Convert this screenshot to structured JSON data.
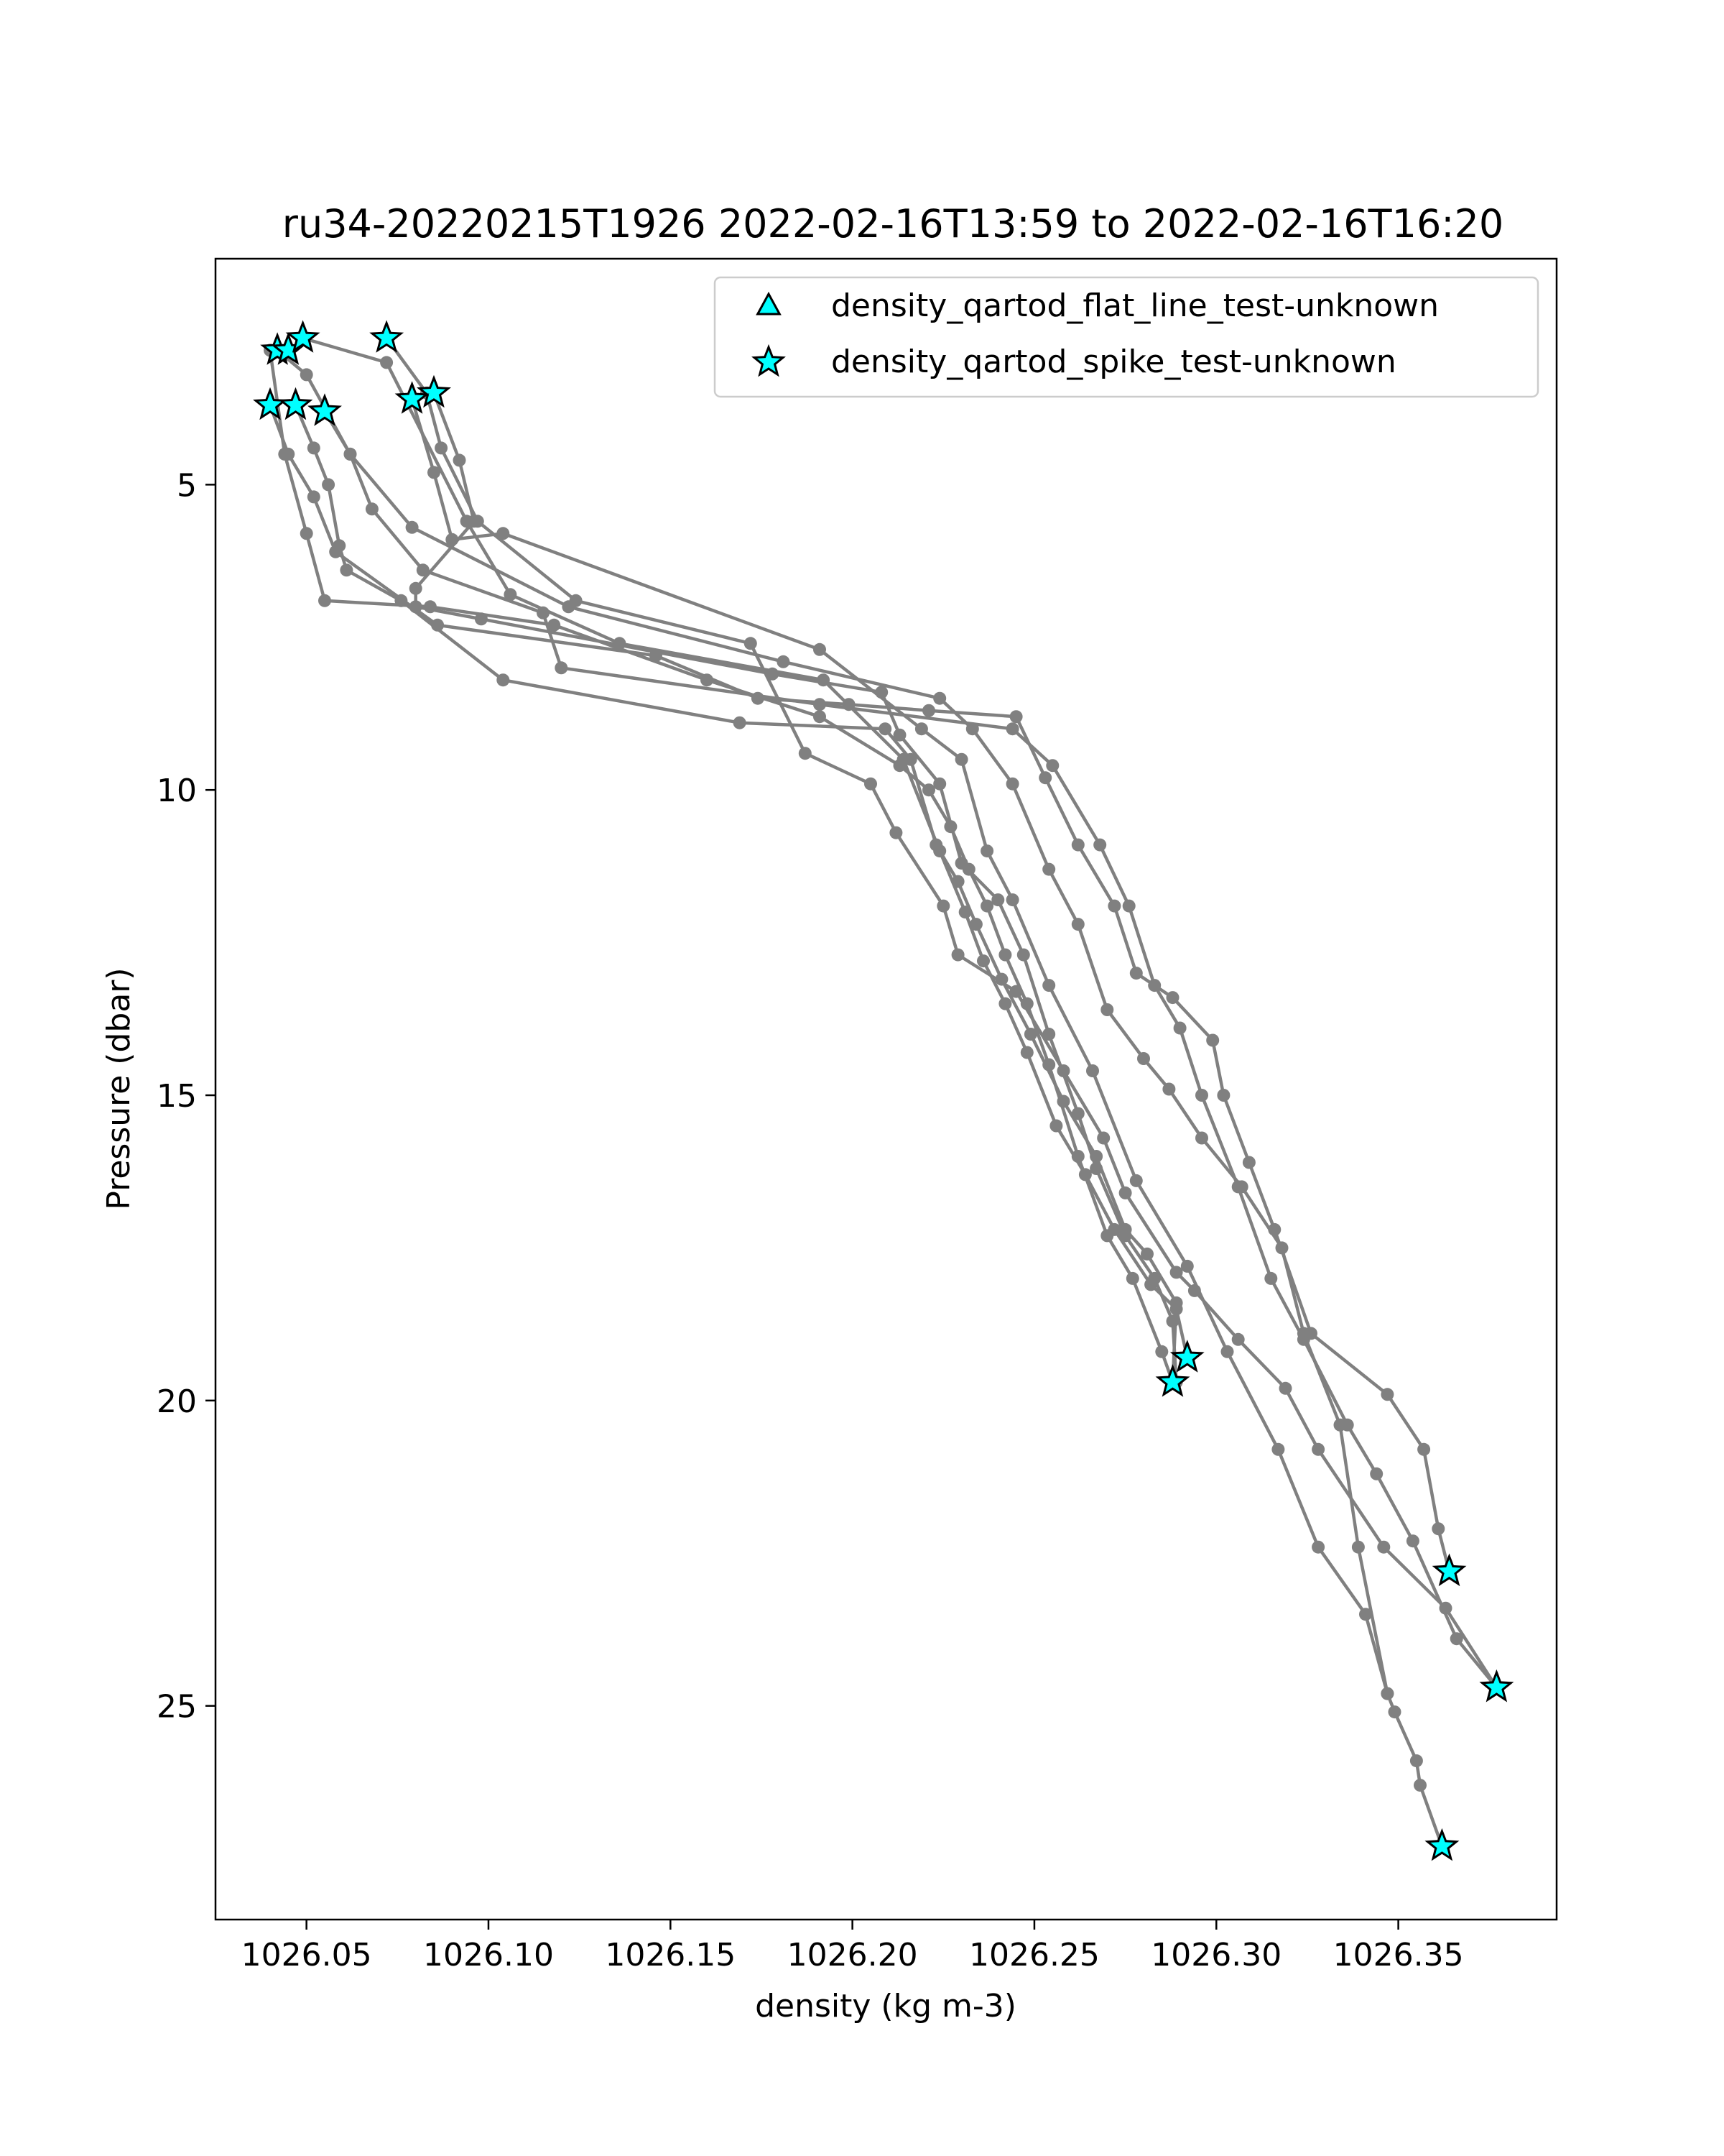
{
  "chart_data": {
    "type": "line",
    "title": "ru34-20220215T1926 2022-02-16T13:59 to 2022-02-16T16:20",
    "xlabel": "density (kg m-3)",
    "ylabel": "Pressure (dbar)",
    "xlim": [
      1026.025,
      1026.3935
    ],
    "ylim": [
      28.5,
      1.3
    ],
    "y_inverted": true,
    "x_ticks": [
      {
        "value": 1026.05,
        "label": "1026.05"
      },
      {
        "value": 1026.1,
        "label": "1026.10"
      },
      {
        "value": 1026.15,
        "label": "1026.15"
      },
      {
        "value": 1026.2,
        "label": "1026.20"
      },
      {
        "value": 1026.25,
        "label": "1026.25"
      },
      {
        "value": 1026.3,
        "label": "1026.30"
      },
      {
        "value": 1026.35,
        "label": "1026.35"
      }
    ],
    "y_ticks": [
      {
        "value": 5,
        "label": "5"
      },
      {
        "value": 10,
        "label": "10"
      },
      {
        "value": 15,
        "label": "15"
      },
      {
        "value": 20,
        "label": "20"
      },
      {
        "value": 25,
        "label": "25"
      }
    ],
    "grid": false,
    "legend_position": "top-right",
    "line_color": "#808080",
    "marker_fill": "#00ffff",
    "marker_edge": "#000000",
    "legend": [
      {
        "label": "density_qartod_flat_line_test-unknown",
        "marker": "triangle"
      },
      {
        "label": "density_qartod_spike_test-unknown",
        "marker": "star"
      }
    ],
    "series": [
      {
        "points": [
          [
            1026.042,
            2.8
          ],
          [
            1026.05,
            3.2
          ],
          [
            1026.062,
            4.5
          ],
          [
            1026.079,
            5.7
          ],
          [
            1026.122,
            7.0
          ],
          [
            1026.181,
            7.9
          ],
          [
            1026.224,
            8.5
          ],
          [
            1026.233,
            9.0
          ],
          [
            1026.244,
            9.9
          ],
          [
            1026.254,
            11.3
          ],
          [
            1026.262,
            12.2
          ],
          [
            1026.27,
            13.6
          ],
          [
            1026.28,
            14.4
          ],
          [
            1026.287,
            14.9
          ],
          [
            1026.296,
            15.7
          ],
          [
            1026.307,
            16.5
          ],
          [
            1026.318,
            17.5
          ],
          [
            1026.324,
            18.9
          ],
          [
            1026.334,
            20.4
          ],
          [
            1026.339,
            22.4
          ],
          [
            1026.347,
            24.8
          ],
          [
            1026.349,
            25.1
          ],
          [
            1026.355,
            25.9
          ],
          [
            1026.356,
            26.3
          ],
          [
            1026.362,
            27.3
          ]
        ]
      },
      {
        "points": [
          [
            1026.04,
            2.8
          ],
          [
            1026.044,
            4.5
          ],
          [
            1026.05,
            5.8
          ],
          [
            1026.055,
            6.9
          ],
          [
            1026.084,
            7.0
          ],
          [
            1026.118,
            7.3
          ],
          [
            1026.16,
            8.2
          ],
          [
            1026.191,
            8.8
          ],
          [
            1026.213,
            9.6
          ],
          [
            1026.221,
            10.0
          ],
          [
            1026.227,
            10.6
          ],
          [
            1026.232,
            11.3
          ],
          [
            1026.237,
            11.9
          ],
          [
            1026.242,
            12.7
          ],
          [
            1026.248,
            13.5
          ],
          [
            1026.254,
            14.5
          ],
          [
            1026.262,
            16.0
          ],
          [
            1026.27,
            17.3
          ],
          [
            1026.277,
            18.0
          ],
          [
            1026.285,
            19.2
          ],
          [
            1026.288,
            19.7
          ]
        ]
      },
      {
        "points": [
          [
            1026.049,
            2.6
          ],
          [
            1026.072,
            3.0
          ],
          [
            1026.094,
            5.6
          ],
          [
            1026.106,
            6.8
          ],
          [
            1026.136,
            7.6
          ],
          [
            1026.192,
            8.2
          ],
          [
            1026.214,
            9.5
          ],
          [
            1026.224,
            11.0
          ],
          [
            1026.231,
            12.0
          ],
          [
            1026.236,
            12.8
          ],
          [
            1026.242,
            13.5
          ],
          [
            1026.248,
            14.3
          ],
          [
            1026.256,
            15.5
          ],
          [
            1026.264,
            16.3
          ],
          [
            1026.272,
            17.2
          ],
          [
            1026.282,
            18.1
          ],
          [
            1026.289,
            18.5
          ],
          [
            1026.292,
            19.3
          ]
        ]
      },
      {
        "points": [
          [
            1026.072,
            2.6
          ],
          [
            1026.083,
            3.5
          ],
          [
            1026.087,
            4.4
          ],
          [
            1026.097,
            5.6
          ],
          [
            1026.124,
            6.9
          ],
          [
            1026.172,
            7.6
          ],
          [
            1026.187,
            9.4
          ],
          [
            1026.205,
            9.9
          ],
          [
            1026.212,
            10.7
          ],
          [
            1026.225,
            11.9
          ],
          [
            1026.229,
            12.7
          ],
          [
            1026.245,
            13.3
          ],
          [
            1026.258,
            14.6
          ],
          [
            1026.269,
            15.7
          ],
          [
            1026.275,
            16.6
          ],
          [
            1026.289,
            17.9
          ],
          [
            1026.294,
            18.2
          ],
          [
            1026.306,
            19.0
          ],
          [
            1026.319,
            19.8
          ],
          [
            1026.328,
            20.8
          ],
          [
            1026.346,
            22.4
          ],
          [
            1026.363,
            23.4
          ],
          [
            1026.377,
            24.7
          ]
        ]
      },
      {
        "points": [
          [
            1026.079,
            3.6
          ],
          [
            1026.085,
            4.8
          ],
          [
            1026.09,
            5.9
          ],
          [
            1026.104,
            5.8
          ],
          [
            1026.191,
            7.7
          ],
          [
            1026.219,
            9.0
          ],
          [
            1026.23,
            9.5
          ],
          [
            1026.237,
            11.0
          ],
          [
            1026.244,
            11.8
          ],
          [
            1026.254,
            13.2
          ],
          [
            1026.266,
            14.6
          ],
          [
            1026.278,
            16.4
          ],
          [
            1026.292,
            17.8
          ],
          [
            1026.303,
            19.2
          ],
          [
            1026.317,
            20.8
          ],
          [
            1026.328,
            22.4
          ],
          [
            1026.341,
            23.5
          ],
          [
            1026.347,
            24.8
          ]
        ]
      },
      {
        "points": [
          [
            1026.085,
            3.5
          ],
          [
            1026.092,
            4.6
          ],
          [
            1026.096,
            5.6
          ],
          [
            1026.08,
            6.7
          ],
          [
            1026.08,
            7.0
          ],
          [
            1026.098,
            7.2
          ],
          [
            1026.178,
            8.1
          ],
          [
            1026.208,
            8.4
          ],
          [
            1026.213,
            9.1
          ],
          [
            1026.224,
            9.9
          ],
          [
            1026.23,
            11.2
          ],
          [
            1026.24,
            11.8
          ],
          [
            1026.247,
            12.7
          ],
          [
            1026.254,
            14.0
          ],
          [
            1026.262,
            15.3
          ],
          [
            1026.267,
            16.2
          ],
          [
            1026.275,
            17.3
          ],
          [
            1026.283,
            18.0
          ],
          [
            1026.288,
            18.7
          ],
          [
            1026.289,
            19.7
          ]
        ]
      },
      {
        "points": [
          [
            1026.055,
            3.8
          ],
          [
            1026.062,
            4.5
          ],
          [
            1026.068,
            5.4
          ],
          [
            1026.082,
            6.4
          ],
          [
            1026.115,
            7.1
          ],
          [
            1026.12,
            8.0
          ],
          [
            1026.191,
            8.6
          ],
          [
            1026.244,
            9.0
          ],
          [
            1026.255,
            9.6
          ],
          [
            1026.268,
            10.9
          ],
          [
            1026.276,
            11.9
          ],
          [
            1026.283,
            13.2
          ],
          [
            1026.29,
            13.9
          ],
          [
            1026.296,
            15.0
          ],
          [
            1026.306,
            16.5
          ],
          [
            1026.315,
            18.0
          ],
          [
            1026.324,
            19.0
          ],
          [
            1026.336,
            20.4
          ],
          [
            1026.344,
            21.2
          ],
          [
            1026.354,
            22.3
          ],
          [
            1026.366,
            23.9
          ],
          [
            1026.377,
            24.7
          ]
        ]
      },
      {
        "points": [
          [
            1026.047,
            3.7
          ],
          [
            1026.052,
            4.4
          ],
          [
            1026.056,
            5.0
          ],
          [
            1026.059,
            6.0
          ],
          [
            1026.061,
            6.4
          ],
          [
            1026.076,
            6.9
          ],
          [
            1026.104,
            8.2
          ],
          [
            1026.169,
            8.9
          ],
          [
            1026.209,
            9.0
          ],
          [
            1026.216,
            9.5
          ],
          [
            1026.223,
            10.9
          ],
          [
            1026.229,
            11.5
          ],
          [
            1026.234,
            12.2
          ],
          [
            1026.241,
            13.1
          ],
          [
            1026.249,
            14.0
          ],
          [
            1026.258,
            15.1
          ],
          [
            1026.267,
            16.0
          ],
          [
            1026.275,
            17.2
          ],
          [
            1026.281,
            17.6
          ],
          [
            1026.289,
            18.4
          ],
          [
            1026.288,
            19.7
          ]
        ]
      },
      {
        "points": [
          [
            1026.04,
            3.7
          ],
          [
            1026.045,
            4.5
          ],
          [
            1026.052,
            5.2
          ],
          [
            1026.058,
            6.1
          ],
          [
            1026.086,
            7.3
          ],
          [
            1026.146,
            7.8
          ],
          [
            1026.174,
            8.5
          ],
          [
            1026.199,
            8.6
          ],
          [
            1026.221,
            8.7
          ],
          [
            1026.245,
            8.8
          ],
          [
            1026.253,
            9.8
          ],
          [
            1026.262,
            10.9
          ],
          [
            1026.272,
            11.9
          ],
          [
            1026.278,
            13.0
          ],
          [
            1026.288,
            13.4
          ],
          [
            1026.299,
            14.1
          ],
          [
            1026.302,
            15.0
          ],
          [
            1026.309,
            16.1
          ],
          [
            1026.316,
            17.2
          ],
          [
            1026.326,
            18.9
          ],
          [
            1026.347,
            19.9
          ],
          [
            1026.357,
            20.8
          ],
          [
            1026.361,
            22.1
          ],
          [
            1026.364,
            22.8
          ]
        ]
      }
    ],
    "spike_test_points": [
      [
        1026.042,
        2.8
      ],
      [
        1026.045,
        2.8
      ],
      [
        1026.049,
        2.6
      ],
      [
        1026.072,
        2.6
      ],
      [
        1026.085,
        3.5
      ],
      [
        1026.079,
        3.6
      ],
      [
        1026.04,
        3.7
      ],
      [
        1026.047,
        3.7
      ],
      [
        1026.055,
        3.8
      ],
      [
        1026.288,
        19.7
      ],
      [
        1026.292,
        19.3
      ],
      [
        1026.364,
        22.8
      ],
      [
        1026.377,
        24.7
      ],
      [
        1026.362,
        27.3
      ]
    ],
    "flat_line_test_points": []
  }
}
